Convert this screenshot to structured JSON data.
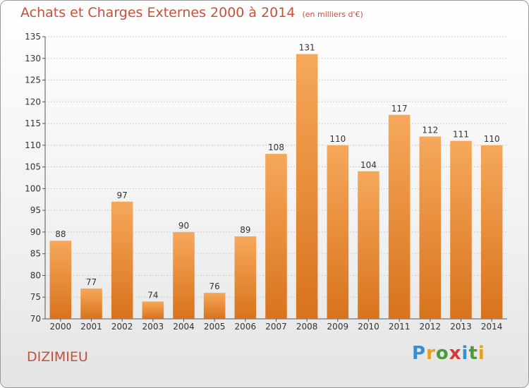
{
  "header": {
    "title": "Achats et Charges Externes 2000 à 2014",
    "unit": "(en milliers d'€)"
  },
  "footer": {
    "commune": "DIZIMIEU",
    "logo_letters": [
      "P",
      "r",
      "o",
      "x",
      "i",
      "t",
      "i"
    ],
    "logo_colors": [
      "#3a8ed0",
      "#e8a020",
      "#4a9c3a",
      "#d23b3b",
      "#3a8ed0",
      "#4a9c3a",
      "#e8a020"
    ]
  },
  "colors": {
    "bar_top": "#f6a85a",
    "bar_bottom": "#d8731d",
    "title": "#c8503a",
    "grid": "#d0d0d0"
  },
  "chart_data": {
    "type": "bar",
    "title": "Achats et Charges Externes 2000 à 2014",
    "subtitle": "(en milliers d'€)",
    "categories": [
      "2000",
      "2001",
      "2002",
      "2003",
      "2004",
      "2005",
      "2006",
      "2007",
      "2008",
      "2009",
      "2010",
      "2011",
      "2012",
      "2013",
      "2014"
    ],
    "values": [
      88,
      77,
      97,
      74,
      90,
      76,
      89,
      108,
      131,
      110,
      104,
      117,
      112,
      111,
      110
    ],
    "ylim": [
      70,
      135
    ],
    "yticks": [
      70,
      75,
      80,
      85,
      90,
      95,
      100,
      105,
      110,
      115,
      120,
      125,
      130,
      135
    ],
    "grid": true,
    "data_labels": true
  }
}
